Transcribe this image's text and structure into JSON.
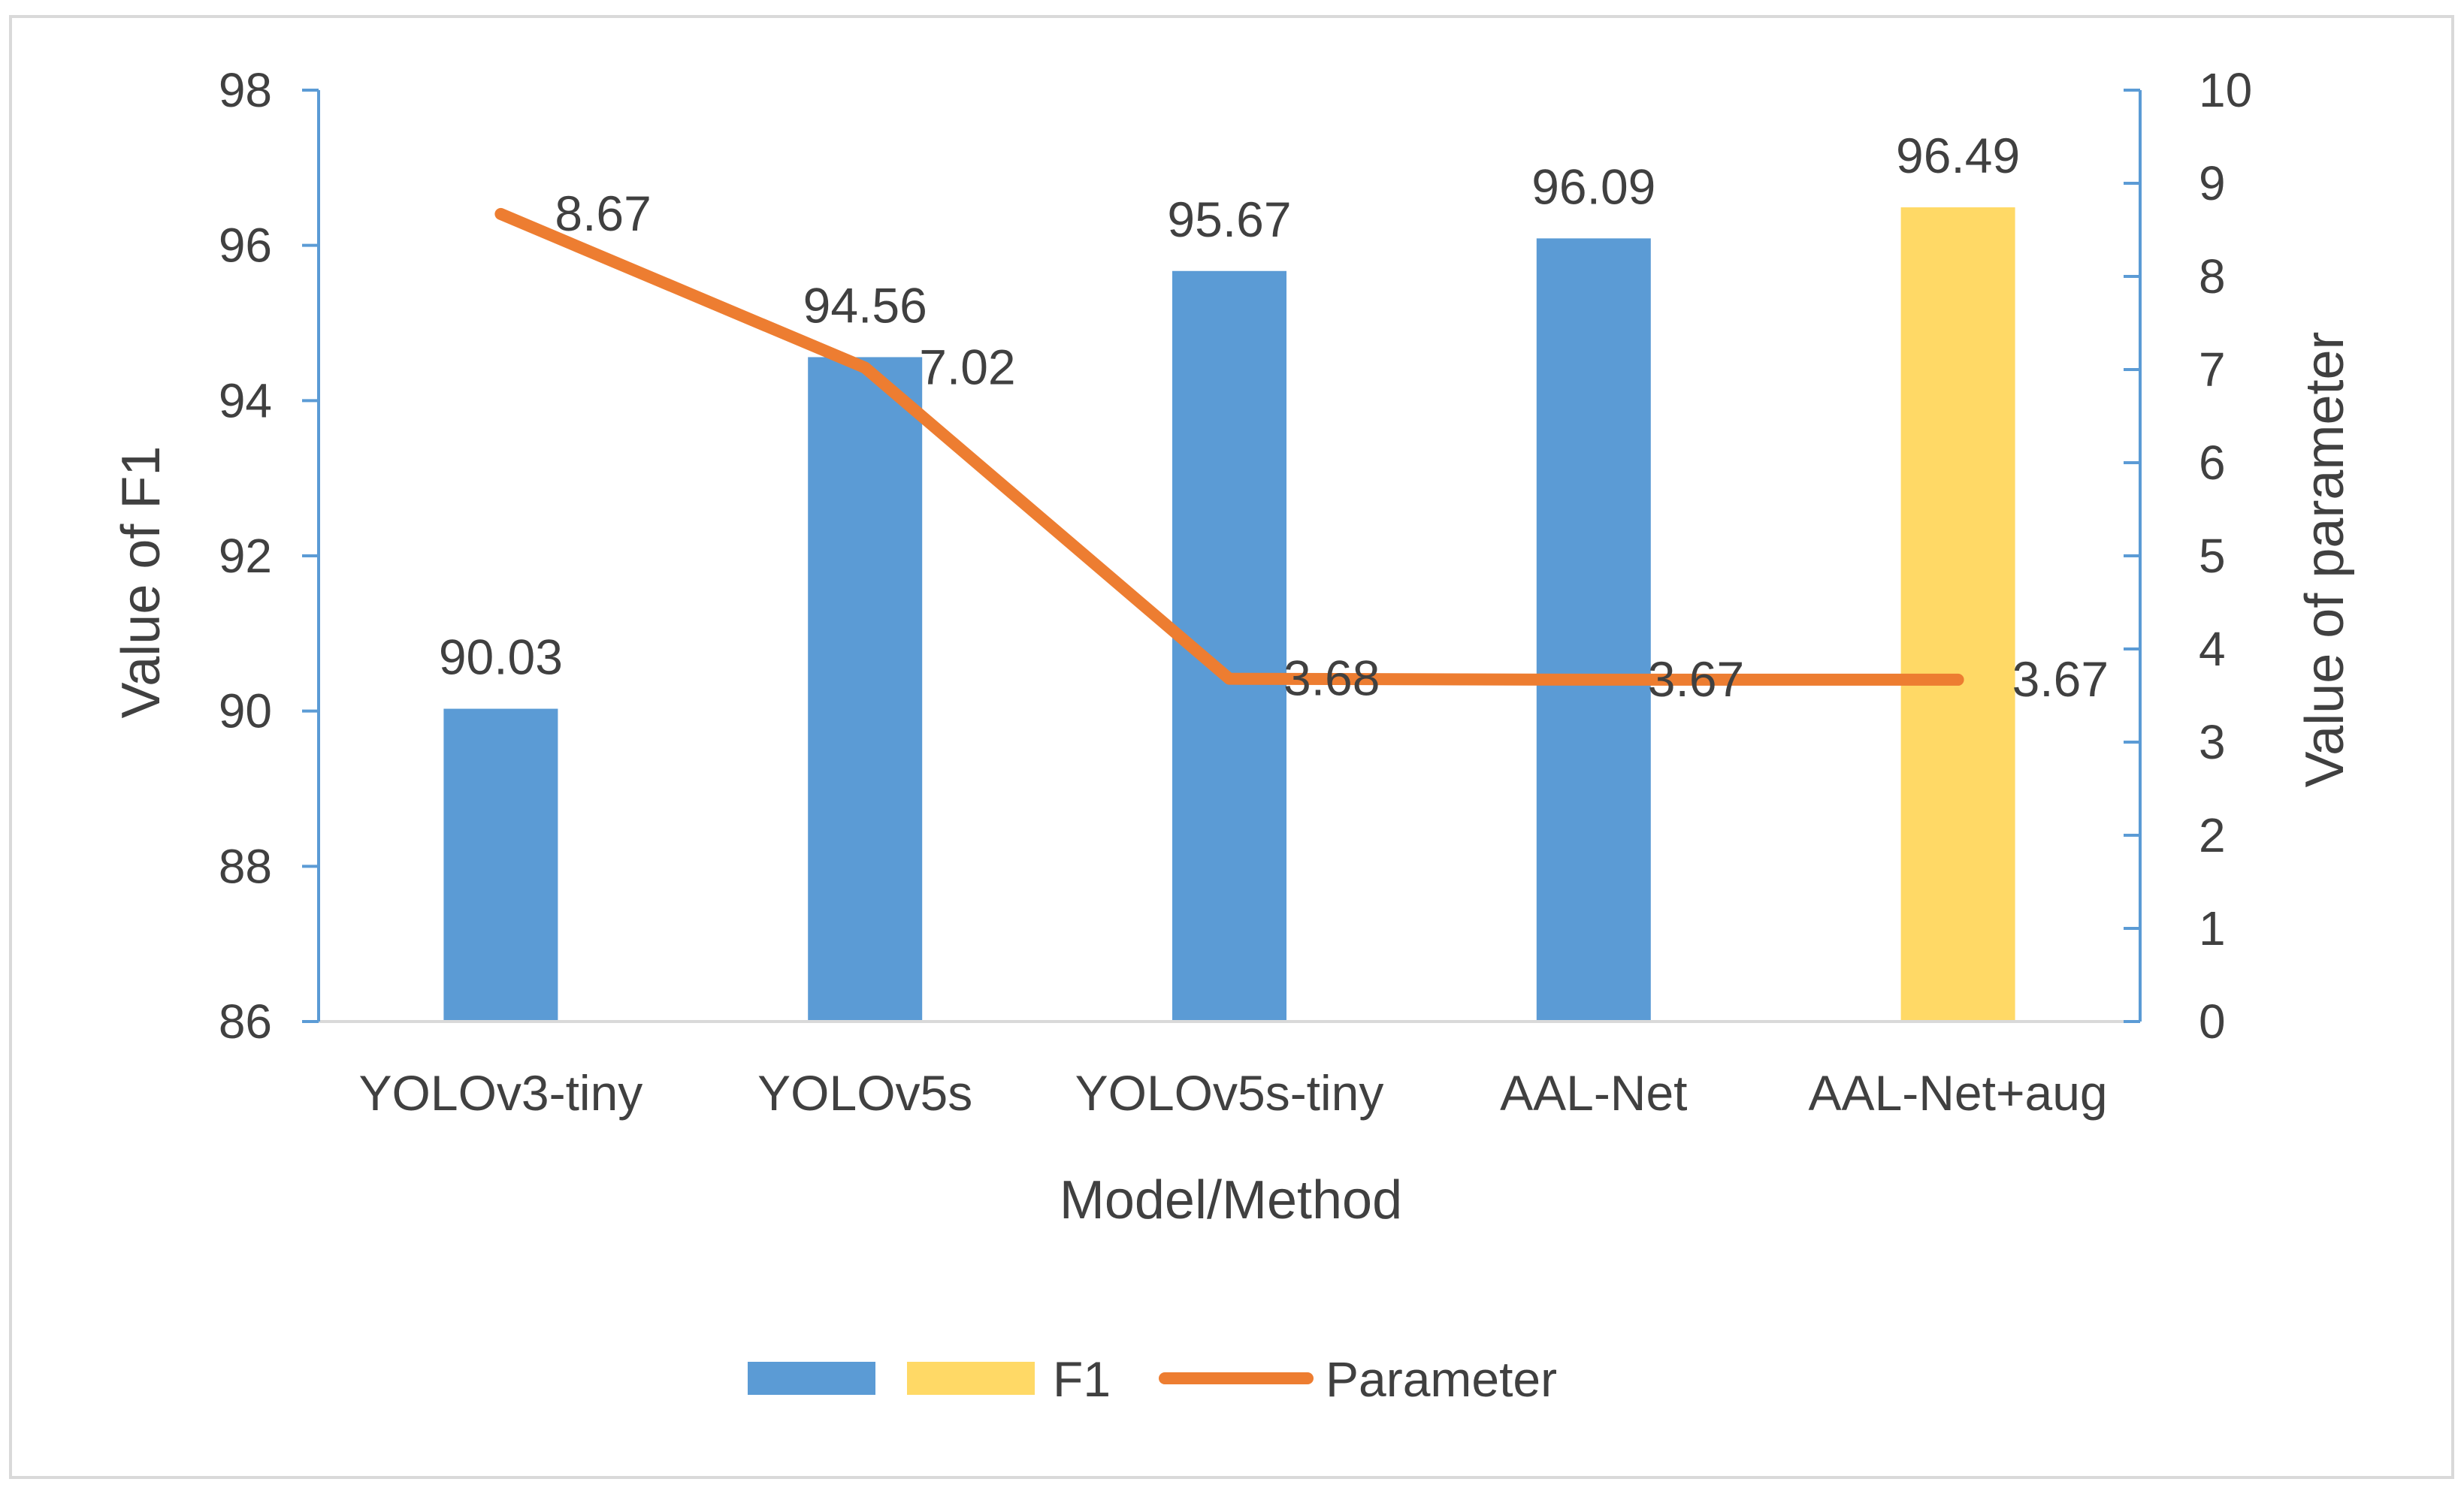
{
  "chart_data": {
    "type": "bar+line",
    "categories": [
      "YOLOv3-tiny",
      "YOLOv5s",
      "YOLOv5s-tiny",
      "AAL-Net",
      "AAL-Net+aug"
    ],
    "series": [
      {
        "name": "F1",
        "type": "bar",
        "axis": "left",
        "values": [
          90.03,
          94.56,
          95.67,
          96.09,
          96.49
        ],
        "value_labels": [
          "90.03",
          "94.56",
          "95.67",
          "96.09",
          "96.49"
        ],
        "colors": [
          "#5b9bd5",
          "#5b9bd5",
          "#5b9bd5",
          "#5b9bd5",
          "#ffd966"
        ]
      },
      {
        "name": "Parameter",
        "type": "line",
        "axis": "right",
        "values": [
          8.67,
          7.02,
          3.68,
          3.67,
          3.67
        ],
        "value_labels": [
          "8.67",
          "7.02",
          "3.68",
          "3.67",
          "3.67"
        ],
        "color": "#ed7d31"
      }
    ],
    "xlabel": "Model/Method",
    "ylabel": "Value of F1",
    "y2label": "Value of parameter",
    "ylim": [
      86,
      98
    ],
    "yticks": [
      "86",
      "88",
      "90",
      "92",
      "94",
      "96",
      "98"
    ],
    "y2lim": [
      0,
      10
    ],
    "y2ticks": [
      "0",
      "1",
      "2",
      "3",
      "4",
      "5",
      "6",
      "7",
      "8",
      "9",
      "10"
    ],
    "legend": {
      "position": "bottom",
      "items": [
        {
          "label": "",
          "color": "#5b9bd5",
          "kind": "bar"
        },
        {
          "label": "F1",
          "color": "#ffd966",
          "kind": "bar"
        },
        {
          "label": "Parameter",
          "color": "#ed7d31",
          "kind": "line"
        }
      ]
    },
    "axis_color": "#5b9bd5",
    "frame_color": "#d9d9d9"
  }
}
